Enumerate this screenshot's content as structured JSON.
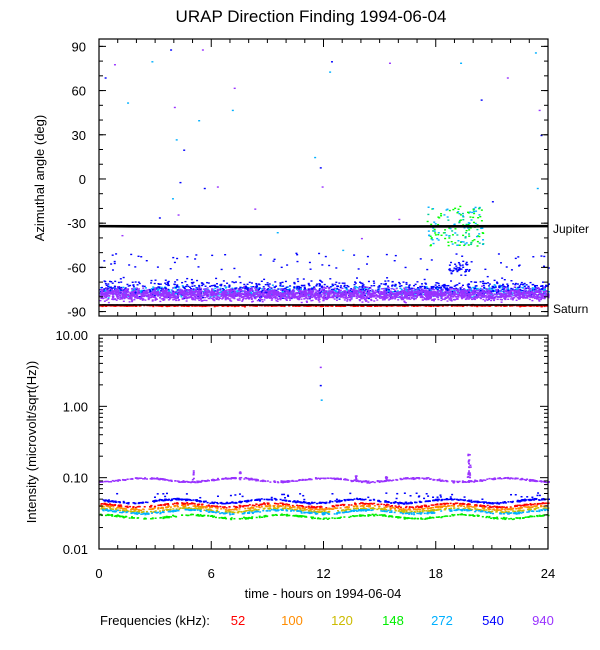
{
  "chart_data": [
    {
      "type": "scatter",
      "title": "URAP Direction Finding  1994-06-04",
      "ylabel": "Azimuthal angle (deg)",
      "xlabel": "",
      "xlim": [
        0,
        24
      ],
      "ylim": [
        -93,
        95
      ],
      "y_ticks": [
        {
          "value": 90,
          "label": "90"
        },
        {
          "value": 60,
          "label": "60"
        },
        {
          "value": 30,
          "label": "30"
        },
        {
          "value": 0,
          "label": "0"
        },
        {
          "value": -30,
          "label": "-30"
        },
        {
          "value": -60,
          "label": "-60"
        },
        {
          "value": -90,
          "label": "-90"
        }
      ],
      "reference_lines": [
        {
          "name": "Jupiter",
          "label": "Jupiter",
          "x": [
            0,
            7.5,
            24
          ],
          "y": [
            -32,
            -32.5,
            -32
          ],
          "color": "#000000"
        },
        {
          "name": "Saturn",
          "label": "Saturn",
          "x": [
            0,
            24
          ],
          "y": [
            -85.5,
            -85.5
          ],
          "color": "#000000"
        }
      ],
      "series": [
        {
          "name": "52",
          "color": "#ff0000",
          "band": {
            "center": -85.5,
            "spread": 0.8
          }
        },
        {
          "name": "540",
          "color": "#0000ff",
          "band": {
            "center": -74,
            "spread": 9
          }
        },
        {
          "name": "940",
          "color": "#9933ff",
          "band": {
            "center": -78,
            "spread": 6
          }
        },
        {
          "name": "272",
          "color": "#00b0ff",
          "band": {
            "center": -76,
            "spread": 5
          }
        },
        {
          "name": "148",
          "color": "#00ff00",
          "cluster": {
            "x": [
              17.5,
              20.5
            ],
            "y": [
              -45,
              -18
            ]
          }
        }
      ]
    },
    {
      "type": "scatter",
      "title": "",
      "ylabel": "Intensity (microvolt/sqrt(Hz))",
      "xlabel": "time - hours on 1994-06-04",
      "xlim": [
        0,
        24
      ],
      "ylim": [
        0.01,
        10.0
      ],
      "yscale": "log",
      "x_ticks": [
        {
          "value": 0,
          "label": "0"
        },
        {
          "value": 6,
          "label": "6"
        },
        {
          "value": 12,
          "label": "12"
        },
        {
          "value": 18,
          "label": "18"
        },
        {
          "value": 24,
          "label": "24"
        }
      ],
      "y_ticks": [
        {
          "value": 10.0,
          "label": "10.00"
        },
        {
          "value": 1.0,
          "label": "1.00"
        },
        {
          "value": 0.1,
          "label": "0.10"
        },
        {
          "value": 0.01,
          "label": "0.01"
        }
      ],
      "series": [
        {
          "name": "940",
          "color": "#9933ff",
          "level": 0.095
        },
        {
          "name": "540",
          "color": "#0000ff",
          "level": 0.048
        },
        {
          "name": "52",
          "color": "#ff0000",
          "level": 0.042
        },
        {
          "name": "100",
          "color": "#ff8c00",
          "level": 0.039
        },
        {
          "name": "120",
          "color": "#ccbb00",
          "level": 0.036
        },
        {
          "name": "272",
          "color": "#00b0ff",
          "level": 0.034
        },
        {
          "name": "148",
          "color": "#00ee00",
          "level": 0.029
        }
      ]
    }
  ],
  "legend": {
    "label": "Frequencies (kHz):",
    "items": [
      {
        "label": "52",
        "color": "#ff0000"
      },
      {
        "label": "100",
        "color": "#ff8c00"
      },
      {
        "label": "120",
        "color": "#ccbb00"
      },
      {
        "label": "148",
        "color": "#00ee00"
      },
      {
        "label": "272",
        "color": "#00b0ff"
      },
      {
        "label": "540",
        "color": "#0000ff"
      },
      {
        "label": "940",
        "color": "#9933ff"
      }
    ]
  }
}
